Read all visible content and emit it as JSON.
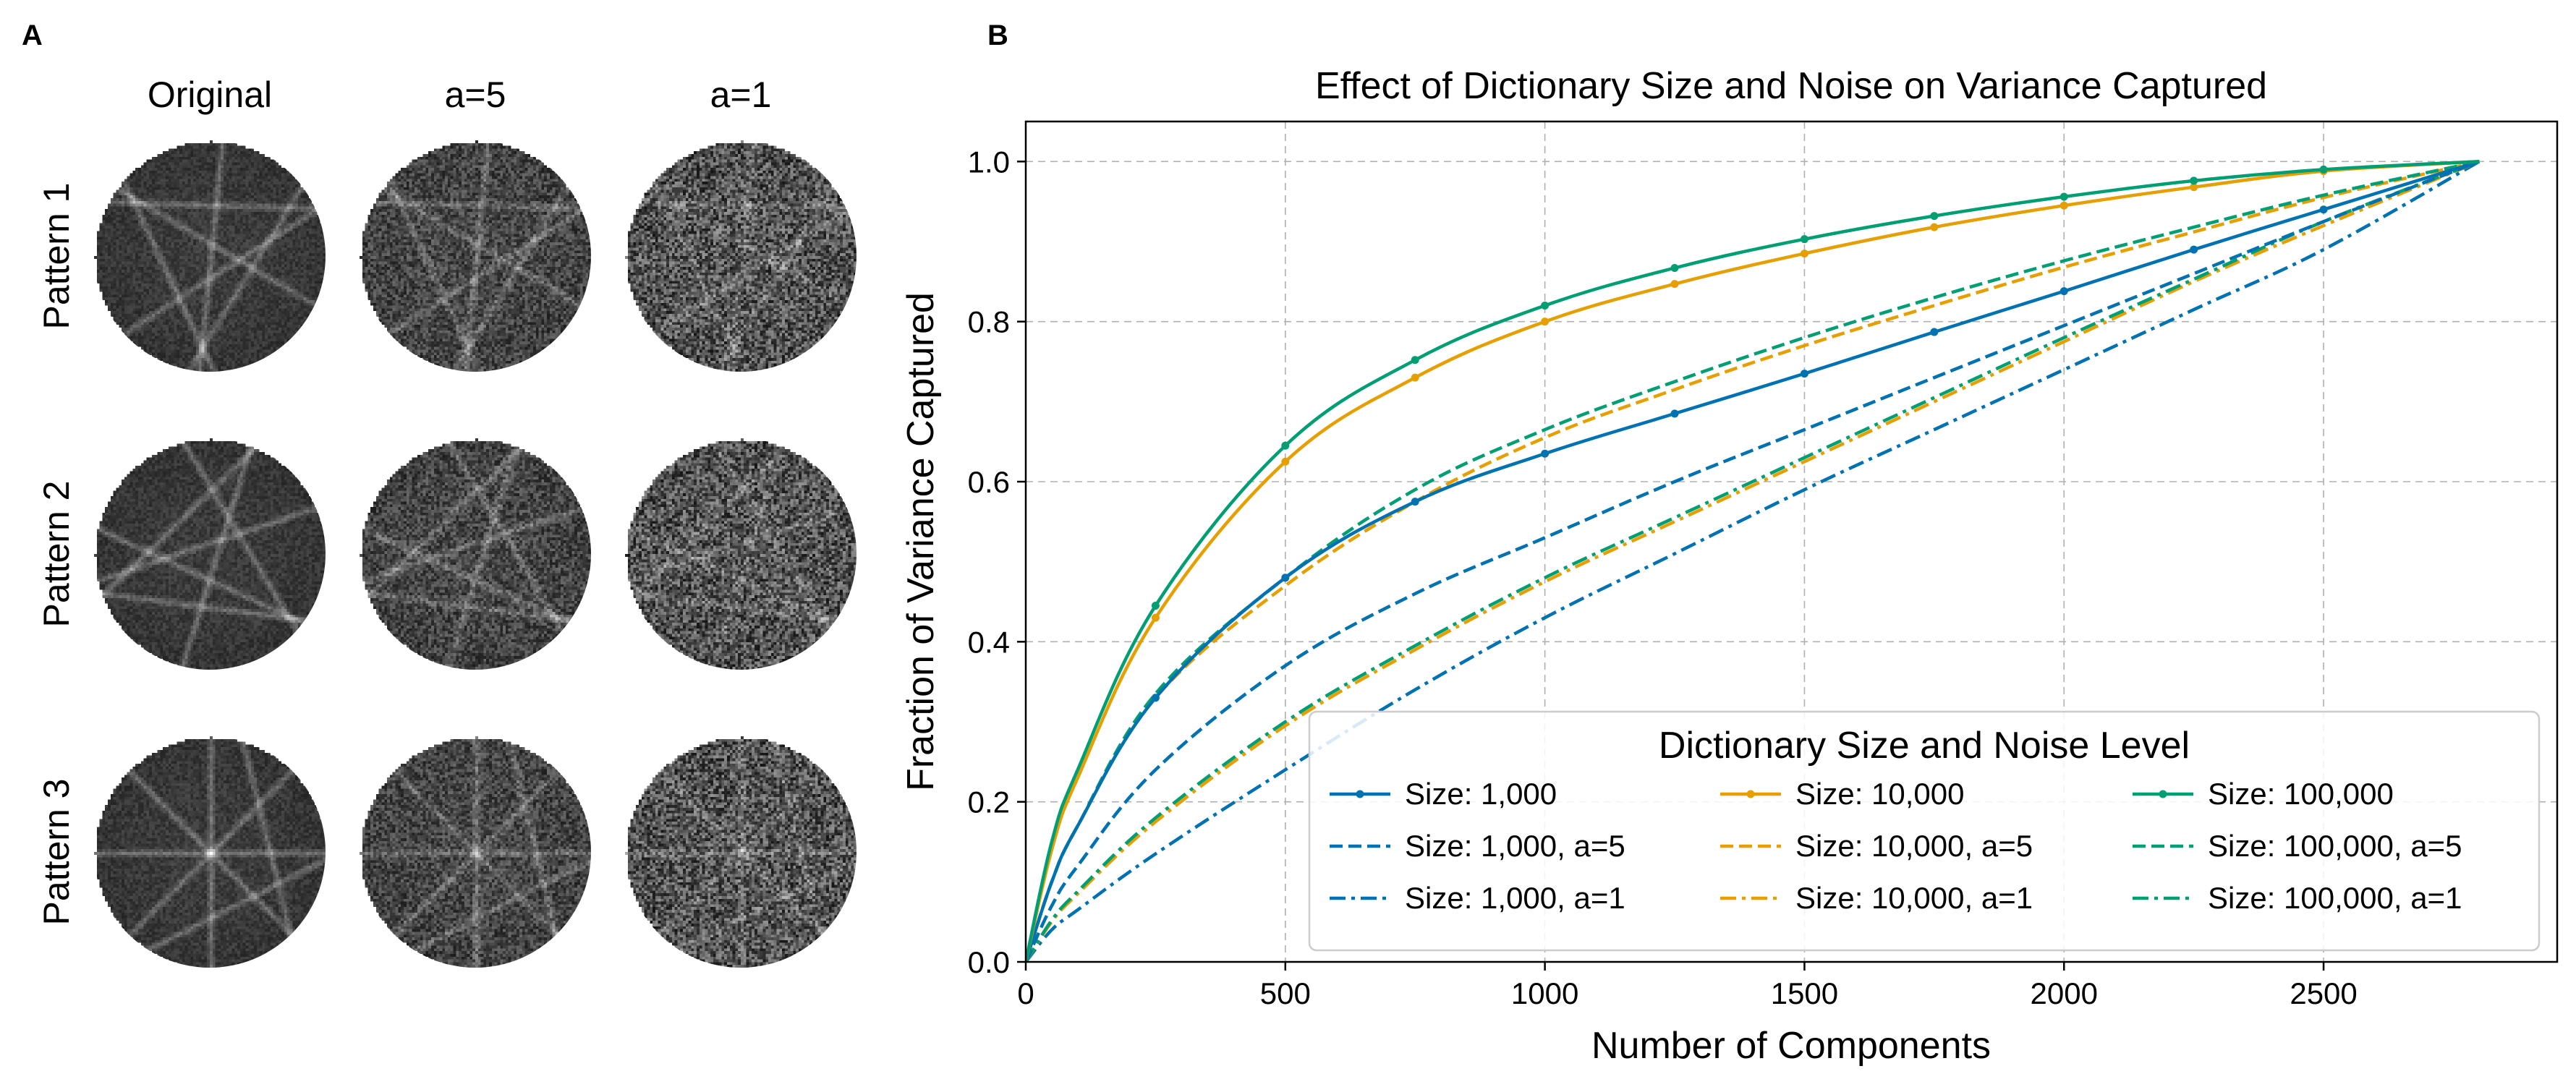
{
  "panel_a": {
    "label": "A",
    "column_headers": [
      "Original",
      "a=5",
      "a=1"
    ],
    "row_labels": [
      "Pattern 1",
      "Pattern 2",
      "Pattern 3"
    ]
  },
  "panel_b": {
    "label": "B"
  },
  "chart_data": {
    "type": "line",
    "title": "Effect of Dictionary Size and Noise on Variance Captured",
    "xlabel": "Number of Components",
    "ylabel": "Fraction of Variance Captured",
    "xlim": [
      0,
      2950
    ],
    "ylim": [
      0,
      1.05
    ],
    "xticks": [
      0,
      500,
      1000,
      1500,
      2000,
      2500
    ],
    "yticks": [
      0.0,
      0.2,
      0.4,
      0.6,
      0.8,
      1.0
    ],
    "ytick_labels": [
      "0.0",
      "0.2",
      "0.4",
      "0.6",
      "0.8",
      "1.0"
    ],
    "grid": true,
    "legend": {
      "title": "Dictionary Size and Noise Level",
      "placement": "lower-right",
      "columns": 3
    },
    "series": [
      {
        "name": "Size: 1,000",
        "color": "#0072B2",
        "style": "solid",
        "markers": true,
        "x": [
          0,
          50,
          100,
          250,
          500,
          750,
          1000,
          1250,
          1500,
          1750,
          2000,
          2250,
          2500,
          2800
        ],
        "y": [
          0,
          0.1,
          0.17,
          0.33,
          0.48,
          0.575,
          0.635,
          0.685,
          0.735,
          0.787,
          0.838,
          0.89,
          0.94,
          1.0
        ]
      },
      {
        "name": "Size: 10,000",
        "color": "#E69F00",
        "style": "solid",
        "markers": true,
        "x": [
          0,
          50,
          100,
          250,
          500,
          750,
          1000,
          1250,
          1500,
          1750,
          2000,
          2250,
          2500,
          2800
        ],
        "y": [
          0,
          0.14,
          0.23,
          0.43,
          0.625,
          0.73,
          0.8,
          0.847,
          0.885,
          0.918,
          0.945,
          0.968,
          0.988,
          1.0
        ]
      },
      {
        "name": "Size: 100,000",
        "color": "#009E73",
        "style": "solid",
        "markers": true,
        "x": [
          0,
          50,
          100,
          250,
          500,
          750,
          1000,
          1250,
          1500,
          1750,
          2000,
          2250,
          2500,
          2800
        ],
        "y": [
          0,
          0.15,
          0.24,
          0.445,
          0.645,
          0.752,
          0.82,
          0.867,
          0.903,
          0.932,
          0.956,
          0.976,
          0.99,
          1.0
        ]
      },
      {
        "name": "Size: 1,000, a=5",
        "color": "#0072B2",
        "style": "dashed",
        "markers": false,
        "x": [
          0,
          50,
          100,
          250,
          500,
          750,
          1000,
          1250,
          1500,
          1750,
          2000,
          2250,
          2500,
          2800
        ],
        "y": [
          0,
          0.07,
          0.12,
          0.24,
          0.37,
          0.46,
          0.53,
          0.6,
          0.665,
          0.73,
          0.795,
          0.86,
          0.925,
          1.0
        ]
      },
      {
        "name": "Size: 10,000, a=5",
        "color": "#E69F00",
        "style": "dashed",
        "markers": false,
        "x": [
          0,
          50,
          100,
          250,
          500,
          750,
          1000,
          1250,
          1500,
          1750,
          2000,
          2250,
          2500,
          2800
        ],
        "y": [
          0,
          0.1,
          0.17,
          0.33,
          0.47,
          0.575,
          0.655,
          0.715,
          0.77,
          0.82,
          0.868,
          0.912,
          0.955,
          1.0
        ]
      },
      {
        "name": "Size: 100,000, a=5",
        "color": "#009E73",
        "style": "dashed",
        "markers": false,
        "x": [
          0,
          50,
          100,
          250,
          500,
          750,
          1000,
          1250,
          1500,
          1750,
          2000,
          2250,
          2500,
          2800
        ],
        "y": [
          0,
          0.1,
          0.17,
          0.335,
          0.48,
          0.59,
          0.665,
          0.725,
          0.78,
          0.83,
          0.876,
          0.918,
          0.958,
          1.0
        ]
      },
      {
        "name": "Size: 1,000, a=1",
        "color": "#0072B2",
        "style": "dashdot",
        "markers": false,
        "x": [
          0,
          50,
          100,
          250,
          500,
          750,
          1000,
          1250,
          1500,
          1750,
          2000,
          2250,
          2500,
          2800
        ],
        "y": [
          0,
          0.04,
          0.065,
          0.135,
          0.24,
          0.34,
          0.43,
          0.51,
          0.59,
          0.665,
          0.74,
          0.815,
          0.89,
          1.0
        ]
      },
      {
        "name": "Size: 10,000, a=1",
        "color": "#E69F00",
        "style": "dashdot",
        "markers": false,
        "x": [
          0,
          50,
          100,
          250,
          500,
          750,
          1000,
          1250,
          1500,
          1750,
          2000,
          2250,
          2500,
          2800
        ],
        "y": [
          0,
          0.05,
          0.085,
          0.175,
          0.295,
          0.39,
          0.475,
          0.55,
          0.625,
          0.7,
          0.775,
          0.85,
          0.92,
          1.0
        ]
      },
      {
        "name": "Size: 100,000, a=1",
        "color": "#009E73",
        "style": "dashdot",
        "markers": false,
        "x": [
          0,
          50,
          100,
          250,
          500,
          750,
          1000,
          1250,
          1500,
          1750,
          2000,
          2250,
          2500,
          2800
        ],
        "y": [
          0,
          0.052,
          0.088,
          0.18,
          0.3,
          0.395,
          0.48,
          0.555,
          0.63,
          0.705,
          0.78,
          0.853,
          0.925,
          1.0
        ]
      }
    ]
  }
}
